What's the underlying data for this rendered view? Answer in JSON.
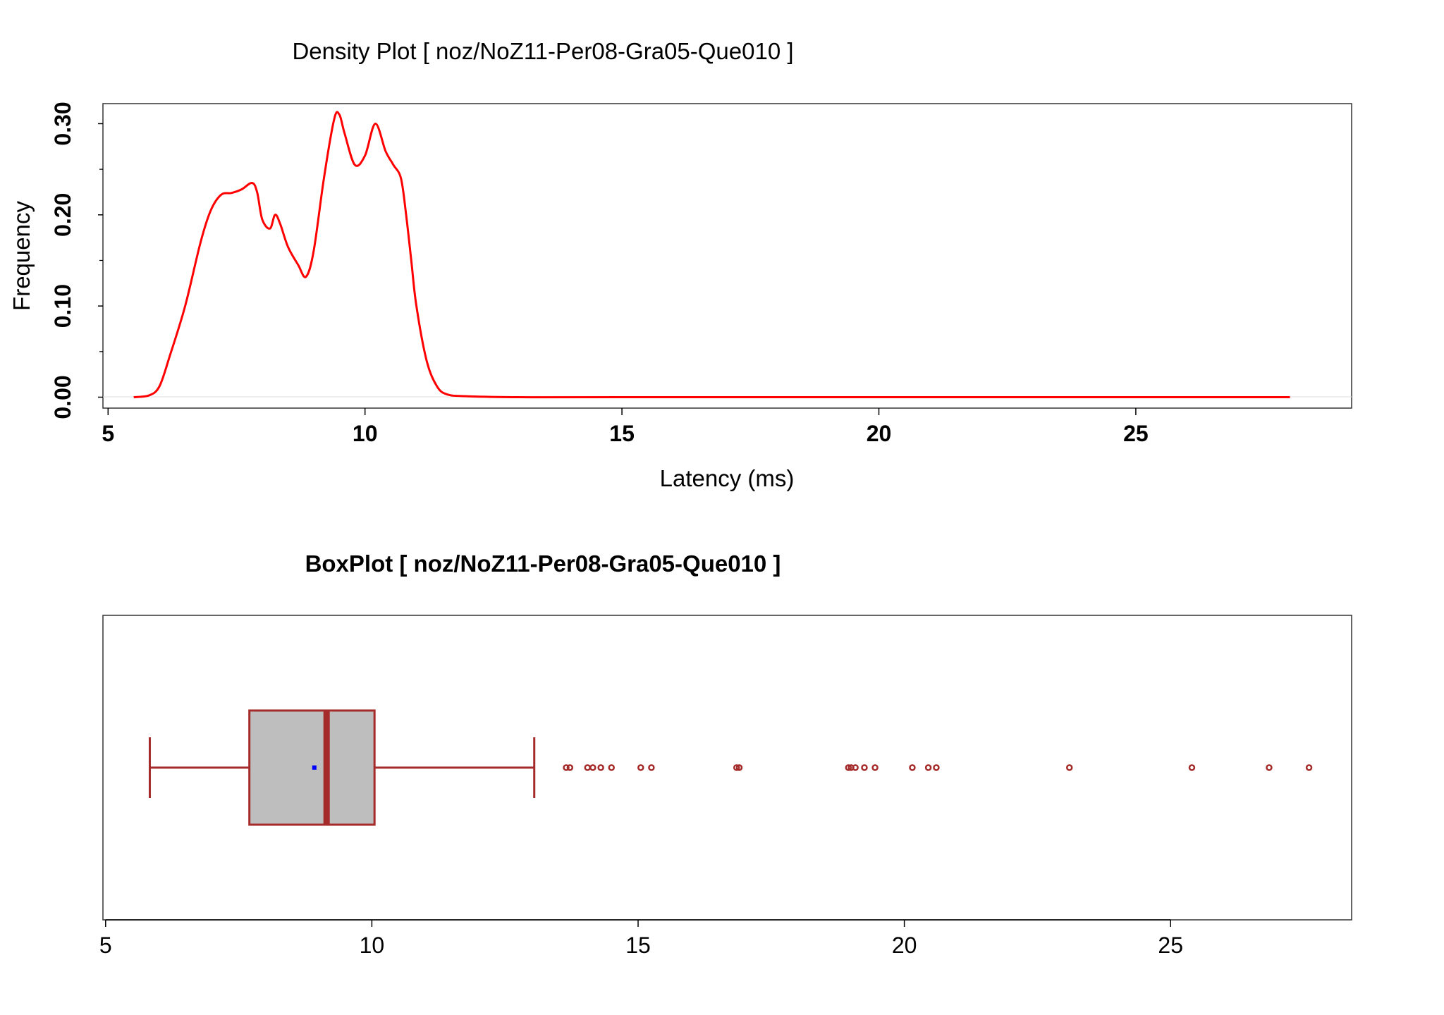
{
  "chart_data": [
    {
      "type": "line",
      "title": "Density Plot [ noz/NoZ11-Per08-Gra05-Que010 ]",
      "xlabel": "Latency (ms)",
      "ylabel": "Frequency",
      "xlim": [
        4.9,
        29.2
      ],
      "ylim": [
        -0.012,
        0.322
      ],
      "x_ticks": [
        5,
        10,
        15,
        20,
        25
      ],
      "y_ticks": [
        0.0,
        0.1,
        0.2,
        0.3
      ],
      "y_tick_labels": [
        "0.00",
        "0.10",
        "0.20",
        "0.30"
      ],
      "line_color": "#ff0000",
      "series": [
        {
          "x": [
            5.5,
            5.8,
            6.0,
            6.2,
            6.5,
            6.8,
            7.0,
            7.2,
            7.4,
            7.6,
            7.8,
            7.9,
            8.0,
            8.15,
            8.25,
            8.35,
            8.5,
            8.7,
            8.85,
            9.0,
            9.2,
            9.4,
            9.5,
            9.6,
            9.8,
            10.0,
            10.2,
            10.4,
            10.55,
            10.7,
            10.8,
            10.9,
            11.0,
            11.2,
            11.4,
            11.6,
            12.0,
            13.0,
            15.0,
            20.0,
            25.0,
            28.0
          ],
          "y": [
            0.0,
            0.002,
            0.012,
            0.045,
            0.1,
            0.17,
            0.205,
            0.222,
            0.224,
            0.228,
            0.235,
            0.225,
            0.195,
            0.185,
            0.2,
            0.19,
            0.165,
            0.145,
            0.132,
            0.16,
            0.24,
            0.305,
            0.31,
            0.29,
            0.255,
            0.265,
            0.3,
            0.27,
            0.255,
            0.24,
            0.2,
            0.15,
            0.1,
            0.04,
            0.012,
            0.003,
            0.001,
            0.0,
            0.0,
            0.0,
            0.0,
            0.0
          ]
        }
      ]
    },
    {
      "type": "box",
      "title": "BoxPlot [ noz/NoZ11-Per08-Gra05-Que010 ]",
      "xlim": [
        4.95,
        28.4
      ],
      "x_ticks": [
        5,
        10,
        15,
        20,
        25
      ],
      "box_color": "#a52a2a",
      "box_fill": "#bebebe",
      "mean_color": "#0000ff",
      "whisker_low": 5.83,
      "q1": 7.7,
      "median": 9.15,
      "q3": 10.05,
      "whisker_high": 13.05,
      "mean": 8.92,
      "outliers": [
        13.65,
        13.72,
        14.05,
        14.15,
        14.3,
        14.5,
        15.05,
        15.25,
        16.85,
        16.9,
        18.95,
        19.0,
        19.08,
        19.25,
        19.45,
        20.15,
        20.45,
        20.6,
        23.1,
        25.4,
        26.85,
        27.6
      ]
    }
  ]
}
